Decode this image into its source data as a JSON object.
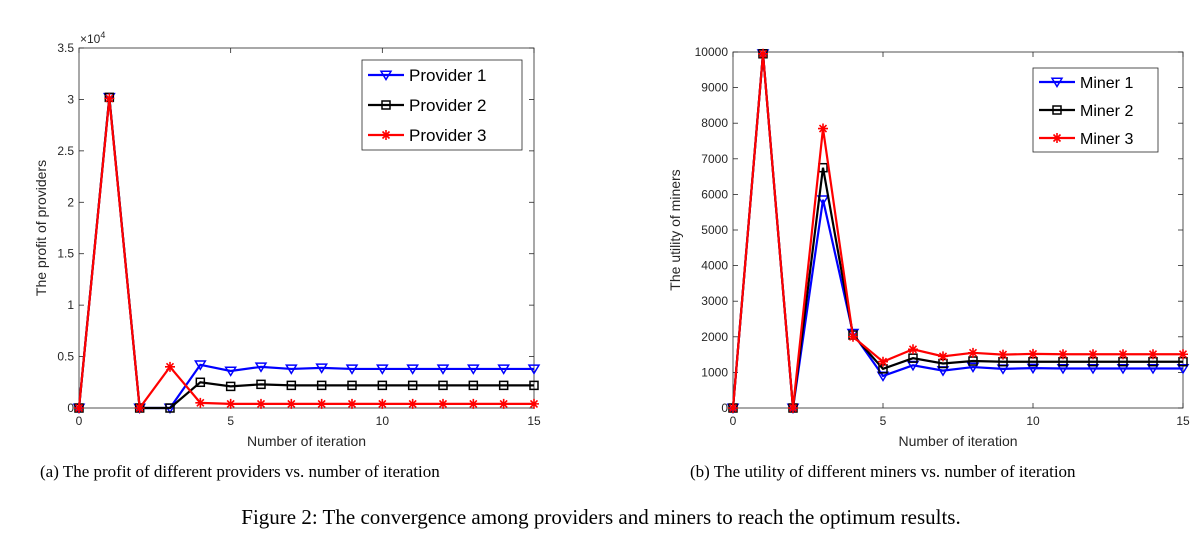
{
  "figure_caption": "Figure 2: The convergence among providers and miners to reach the optimum results.",
  "chart_data": [
    {
      "type": "line",
      "subcaption": "(a) The profit of different providers vs. number of iteration",
      "xlabel": "Number of iteration",
      "ylabel": "The profit of providers",
      "y_exponent_label": "×10",
      "y_exponent_power": "4",
      "xlim": [
        0,
        15
      ],
      "ylim": [
        0,
        3.5
      ],
      "xticks": [
        0,
        5,
        10,
        15
      ],
      "yticks": [
        0,
        0.5,
        1,
        1.5,
        2,
        2.5,
        3,
        3.5
      ],
      "ytick_labels": [
        "0",
        "0.5",
        "1",
        "1.5",
        "2",
        "2.5",
        "3",
        "3.5"
      ],
      "legend_position": "top-right",
      "x": [
        0,
        1,
        2,
        3,
        4,
        5,
        6,
        7,
        8,
        9,
        10,
        11,
        12,
        13,
        14,
        15
      ],
      "series": [
        {
          "name": "Provider 1",
          "color": "#0000ff",
          "marker": "triangle-down",
          "values": [
            0,
            3.02,
            0,
            0,
            0.42,
            0.36,
            0.4,
            0.38,
            0.39,
            0.38,
            0.38,
            0.38,
            0.38,
            0.38,
            0.38,
            0.38
          ]
        },
        {
          "name": "Provider 2",
          "color": "#000000",
          "marker": "square",
          "values": [
            0,
            3.02,
            0,
            0,
            0.25,
            0.21,
            0.23,
            0.22,
            0.22,
            0.22,
            0.22,
            0.22,
            0.22,
            0.22,
            0.22,
            0.22
          ]
        },
        {
          "name": "Provider 3",
          "color": "#ff0000",
          "marker": "star",
          "values": [
            0,
            3.01,
            0,
            0.4,
            0.05,
            0.04,
            0.04,
            0.04,
            0.04,
            0.04,
            0.04,
            0.04,
            0.04,
            0.04,
            0.04,
            0.04
          ]
        }
      ]
    },
    {
      "type": "line",
      "subcaption": "(b) The utility of different miners vs. number of iteration",
      "xlabel": "Number of iteration",
      "ylabel": "The utility of miners",
      "xlim": [
        0,
        15
      ],
      "ylim": [
        0,
        10000
      ],
      "xticks": [
        0,
        5,
        10,
        15
      ],
      "yticks": [
        0,
        1000,
        2000,
        3000,
        4000,
        5000,
        6000,
        7000,
        8000,
        9000,
        10000
      ],
      "ytick_labels": [
        "0",
        "1000",
        "2000",
        "3000",
        "4000",
        "5000",
        "6000",
        "7000",
        "8000",
        "9000",
        "10000"
      ],
      "legend_position": "top-right",
      "x": [
        0,
        1,
        2,
        3,
        4,
        5,
        6,
        7,
        8,
        9,
        10,
        11,
        12,
        13,
        14,
        15
      ],
      "series": [
        {
          "name": "Miner 1",
          "color": "#0000ff",
          "marker": "triangle-down",
          "values": [
            0,
            9950,
            0,
            5850,
            2100,
            900,
            1200,
            1050,
            1150,
            1100,
            1120,
            1110,
            1110,
            1110,
            1110,
            1110
          ]
        },
        {
          "name": "Miner 2",
          "color": "#000000",
          "marker": "square",
          "values": [
            0,
            9950,
            0,
            6750,
            2050,
            1100,
            1400,
            1250,
            1320,
            1300,
            1300,
            1300,
            1300,
            1300,
            1300,
            1300
          ]
        },
        {
          "name": "Miner 3",
          "color": "#ff0000",
          "marker": "star",
          "values": [
            0,
            9950,
            0,
            7850,
            2000,
            1300,
            1650,
            1450,
            1550,
            1500,
            1520,
            1510,
            1510,
            1510,
            1510,
            1510
          ]
        }
      ]
    }
  ]
}
